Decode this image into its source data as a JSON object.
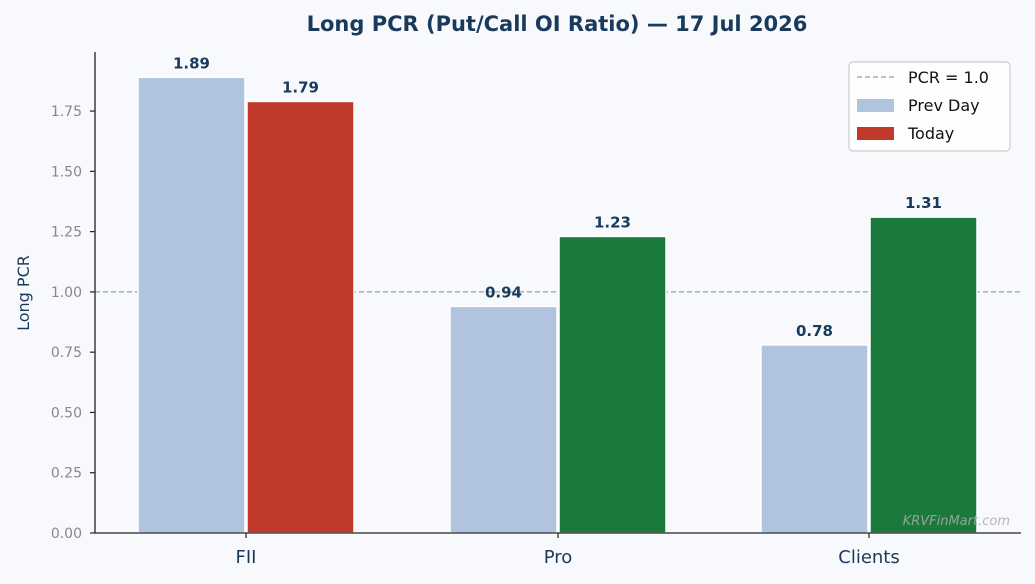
{
  "chart_data": {
    "type": "bar",
    "title": "Long PCR (Put/Call OI Ratio) — 17 Jul 2026",
    "xlabel": "",
    "ylabel": "Long PCR",
    "categories": [
      "FII",
      "Pro",
      "Clients"
    ],
    "series": [
      {
        "name": "Prev Day",
        "values": [
          1.89,
          0.94,
          0.78
        ]
      },
      {
        "name": "Today",
        "values": [
          1.79,
          1.23,
          1.31
        ]
      }
    ],
    "value_labels": {
      "prev_day": [
        "1.89",
        "0.94",
        "0.78"
      ],
      "today": [
        "1.79",
        "1.23",
        "1.31"
      ]
    },
    "ylim": [
      0,
      1.995
    ],
    "yticks": [
      0.0,
      0.25,
      0.5,
      0.75,
      1.0,
      1.25,
      1.5,
      1.75
    ],
    "ytick_labels": [
      "0.00",
      "0.25",
      "0.50",
      "0.75",
      "1.00",
      "1.25",
      "1.50",
      "1.75"
    ],
    "reference_line": {
      "value": 1.0,
      "label": "PCR = 1.0"
    },
    "legend": {
      "position": "top-right",
      "entries": [
        "PCR = 1.0",
        "Prev Day",
        "Today"
      ]
    },
    "grid": false,
    "colors": {
      "prev_day": "#b0c4de",
      "today_up": "#1a7a3c",
      "today_down": "#c0392b",
      "reference_line": "#8fa4b8",
      "title": "#1a3a5c",
      "tick_text": "#888888"
    },
    "watermark": "KRVFinMart.com"
  }
}
